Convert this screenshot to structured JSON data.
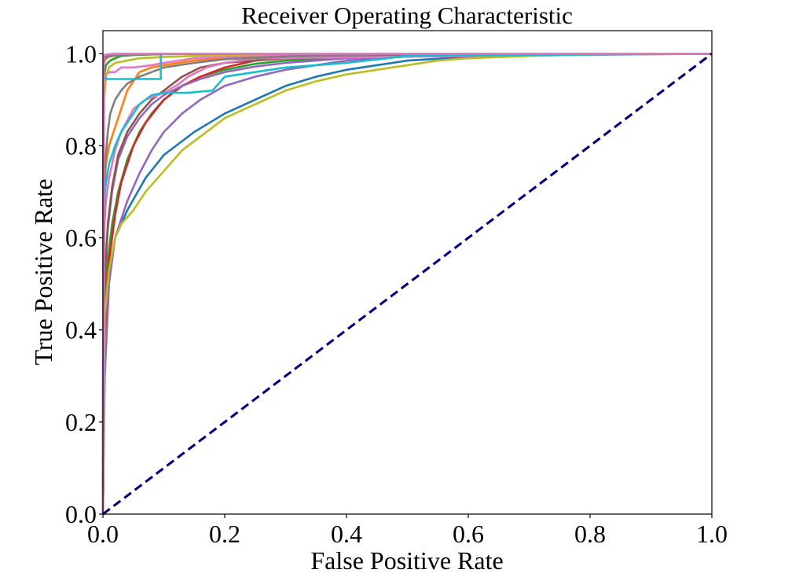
{
  "chart_data": {
    "type": "line",
    "title": "Receiver Operating Characteristic",
    "xlabel": "False Positive Rate",
    "ylabel": "True Positive Rate",
    "xlim": [
      0.0,
      1.0
    ],
    "ylim": [
      0.0,
      1.05
    ],
    "x_ticks": [
      "0.0",
      "0.2",
      "0.4",
      "0.6",
      "0.8",
      "1.0"
    ],
    "y_ticks": [
      "0.0",
      "0.2",
      "0.4",
      "0.6",
      "0.8",
      "1.0"
    ],
    "x_tick_values": [
      0.0,
      0.2,
      0.4,
      0.6,
      0.8,
      1.0
    ],
    "y_tick_values": [
      0.0,
      0.2,
      0.4,
      0.6,
      0.8,
      1.0
    ],
    "grid": false,
    "legend": false,
    "series": [
      {
        "color": "#1f77b4",
        "x": [
          0,
          0.003,
          0.01,
          0.02,
          0.04,
          0.07,
          0.1,
          0.15,
          0.2,
          0.25,
          0.3,
          0.35,
          0.4,
          0.45,
          0.5,
          0.6,
          0.7,
          0.8,
          1.0
        ],
        "y": [
          0,
          0.4,
          0.52,
          0.6,
          0.66,
          0.73,
          0.78,
          0.83,
          0.87,
          0.9,
          0.93,
          0.95,
          0.965,
          0.975,
          0.985,
          0.993,
          0.997,
          0.999,
          1.0
        ]
      },
      {
        "color": "#ff7f0e",
        "x": [
          0,
          0.002,
          0.005,
          0.01,
          0.02,
          0.03,
          0.04,
          0.05,
          0.06,
          0.08,
          0.1,
          0.15,
          0.2,
          0.3,
          0.4,
          0.5,
          1.0
        ],
        "y": [
          0,
          0.7,
          0.76,
          0.8,
          0.84,
          0.88,
          0.92,
          0.94,
          0.96,
          0.97,
          0.975,
          0.985,
          0.99,
          0.995,
          0.998,
          1.0,
          1.0
        ]
      },
      {
        "color": "#2ca02c",
        "x": [
          0,
          0.003,
          0.008,
          0.015,
          0.025,
          0.04,
          0.06,
          0.08,
          0.1,
          0.13,
          0.16,
          0.2,
          0.25,
          0.3,
          0.4,
          0.5,
          1.0
        ],
        "y": [
          0,
          0.45,
          0.55,
          0.63,
          0.7,
          0.77,
          0.83,
          0.87,
          0.9,
          0.93,
          0.95,
          0.965,
          0.978,
          0.985,
          0.993,
          0.998,
          1.0
        ]
      },
      {
        "color": "#2ca02c",
        "x": [
          0,
          0.001,
          0.003,
          0.005,
          0.008,
          0.012,
          0.02,
          0.03,
          0.05,
          0.1,
          0.2,
          0.4,
          1.0
        ],
        "y": [
          0,
          0.92,
          0.96,
          0.975,
          0.98,
          0.985,
          0.99,
          0.995,
          0.997,
          0.999,
          1.0,
          1.0,
          1.0
        ]
      },
      {
        "color": "#d62728",
        "x": [
          0,
          0.002,
          0.005,
          0.01,
          0.02,
          0.03,
          0.05,
          0.07,
          0.1,
          0.13,
          0.16,
          0.2,
          0.25,
          0.3,
          0.35,
          0.4,
          0.5,
          1.0
        ],
        "y": [
          0,
          0.25,
          0.45,
          0.55,
          0.65,
          0.72,
          0.8,
          0.85,
          0.9,
          0.93,
          0.95,
          0.97,
          0.985,
          0.99,
          0.995,
          0.997,
          1.0,
          1.0
        ]
      },
      {
        "color": "#9467bd",
        "x": [
          0,
          0.003,
          0.01,
          0.02,
          0.04,
          0.06,
          0.08,
          0.1,
          0.13,
          0.16,
          0.2,
          0.25,
          0.3,
          0.35,
          0.4,
          0.5,
          0.6,
          1.0
        ],
        "y": [
          0,
          0.3,
          0.5,
          0.6,
          0.68,
          0.74,
          0.79,
          0.83,
          0.87,
          0.9,
          0.93,
          0.95,
          0.965,
          0.975,
          0.985,
          0.994,
          0.998,
          1.0
        ]
      },
      {
        "color": "#9467bd",
        "x": [
          0,
          0.003,
          0.008,
          0.015,
          0.025,
          0.04,
          0.06,
          0.08,
          0.1,
          0.13,
          0.16,
          0.2,
          0.25,
          0.3,
          0.35,
          0.4,
          0.5,
          1.0
        ],
        "y": [
          0,
          0.5,
          0.62,
          0.7,
          0.77,
          0.82,
          0.86,
          0.89,
          0.91,
          0.93,
          0.945,
          0.96,
          0.972,
          0.98,
          0.985,
          0.99,
          0.996,
          1.0
        ]
      },
      {
        "color": "#8c564b",
        "x": [
          0,
          0.003,
          0.008,
          0.015,
          0.025,
          0.04,
          0.06,
          0.08,
          0.1,
          0.13,
          0.16,
          0.2,
          0.3,
          0.4,
          1.0
        ],
        "y": [
          0,
          0.5,
          0.63,
          0.71,
          0.78,
          0.83,
          0.87,
          0.9,
          0.92,
          0.95,
          0.97,
          0.98,
          0.99,
          0.995,
          1.0
        ]
      },
      {
        "color": "#e377c2",
        "x": [
          0,
          0.002,
          0.005,
          0.01,
          0.02,
          0.03,
          0.05,
          0.07,
          0.1,
          0.12,
          0.14,
          0.17,
          0.2,
          0.25,
          1.0
        ],
        "y": [
          0,
          0.62,
          0.68,
          0.73,
          0.79,
          0.83,
          0.88,
          0.9,
          0.915,
          0.93,
          0.95,
          0.97,
          0.98,
          0.99,
          1.0
        ]
      },
      {
        "color": "#e377c2",
        "x": [
          0,
          0.002,
          0.01,
          0.02,
          0.03,
          0.05,
          0.08,
          0.1,
          0.15,
          0.2,
          0.3,
          1.0
        ],
        "y": [
          0,
          0.95,
          0.96,
          0.96,
          0.97,
          0.97,
          0.975,
          0.98,
          0.99,
          0.993,
          0.998,
          1.0
        ]
      },
      {
        "color": "#7f7f7f",
        "x": [
          0,
          0.003,
          0.008,
          0.012,
          0.02,
          0.03,
          0.04,
          0.06,
          0.08,
          0.1,
          0.15,
          0.2,
          0.3,
          0.4,
          0.5,
          1.0
        ],
        "y": [
          0,
          0.75,
          0.83,
          0.87,
          0.9,
          0.92,
          0.935,
          0.95,
          0.96,
          0.97,
          0.98,
          0.988,
          0.994,
          0.997,
          0.999,
          1.0
        ]
      },
      {
        "color": "#bcbd22",
        "x": [
          0,
          0.003,
          0.01,
          0.02,
          0.03,
          0.05,
          0.07,
          0.09,
          0.11,
          0.13,
          0.16,
          0.2,
          0.25,
          0.3,
          0.35,
          0.4,
          0.45,
          0.5,
          0.55,
          0.6,
          0.7,
          0.8,
          1.0
        ],
        "y": [
          0,
          0.43,
          0.53,
          0.6,
          0.63,
          0.66,
          0.7,
          0.73,
          0.76,
          0.79,
          0.82,
          0.86,
          0.89,
          0.92,
          0.94,
          0.955,
          0.965,
          0.975,
          0.985,
          0.99,
          0.995,
          0.998,
          1.0
        ]
      },
      {
        "color": "#bcbd22",
        "x": [
          0,
          0.001,
          0.002,
          0.005,
          0.01,
          0.02,
          0.04,
          0.06,
          0.1,
          0.2,
          0.3,
          1.0
        ],
        "y": [
          0,
          0.8,
          0.9,
          0.95,
          0.97,
          0.98,
          0.985,
          0.99,
          0.993,
          0.997,
          1.0,
          1.0
        ]
      },
      {
        "color": "#17becf",
        "x": [
          0,
          0.002,
          0.005,
          0.01,
          0.02,
          0.03,
          0.04,
          0.05,
          0.06,
          0.08,
          0.1,
          0.14,
          0.18,
          0.2,
          0.25,
          0.3,
          0.35,
          0.4,
          0.5,
          1.0
        ],
        "y": [
          0,
          0.68,
          0.72,
          0.76,
          0.8,
          0.83,
          0.85,
          0.87,
          0.89,
          0.91,
          0.915,
          0.915,
          0.92,
          0.95,
          0.96,
          0.97,
          0.975,
          0.98,
          0.995,
          1.0
        ]
      },
      {
        "color": "#17becf",
        "x": [
          0,
          0.001,
          0.003,
          0.005,
          0.02,
          0.05,
          0.095,
          0.095,
          0.1,
          0.15,
          0.2,
          0.3,
          1.0
        ],
        "y": [
          0,
          0.95,
          0.95,
          0.945,
          0.945,
          0.945,
          0.945,
          1.0,
          1.0,
          1.0,
          1.0,
          1.0,
          1.0
        ]
      },
      {
        "color": "#ff7f0e",
        "x": [
          0,
          0.001,
          0.003,
          0.006,
          0.01,
          0.02,
          0.04,
          0.08,
          0.15,
          0.3,
          1.0
        ],
        "y": [
          0,
          0.97,
          0.985,
          0.99,
          0.993,
          0.996,
          0.998,
          0.999,
          1.0,
          1.0,
          1.0
        ]
      },
      {
        "color": "#9467bd",
        "x": [
          0,
          0.001,
          0.002,
          0.004,
          0.008,
          0.015,
          0.03,
          0.06,
          0.1,
          0.2,
          1.0
        ],
        "y": [
          0,
          0.99,
          0.993,
          0.995,
          0.997,
          0.998,
          0.999,
          1.0,
          1.0,
          1.0,
          1.0
        ]
      },
      {
        "color": "#7f7f7f",
        "x": [
          0,
          0.001,
          0.003,
          0.006,
          0.012,
          0.025,
          0.05,
          0.1,
          0.2,
          1.0
        ],
        "y": [
          0,
          0.98,
          0.99,
          0.992,
          0.995,
          0.997,
          0.998,
          0.999,
          1.0,
          1.0
        ]
      },
      {
        "color": "#e377c2",
        "x": [
          0,
          0.001,
          0.002,
          0.005,
          0.01,
          0.02,
          0.05,
          0.1,
          1.0
        ],
        "y": [
          0,
          0.995,
          0.997,
          0.998,
          0.999,
          1.0,
          1.0,
          1.0,
          1.0
        ]
      }
    ],
    "reference_line": {
      "color": "#000080",
      "style": "dashed",
      "x": [
        0,
        1
      ],
      "y": [
        0,
        1
      ]
    }
  }
}
